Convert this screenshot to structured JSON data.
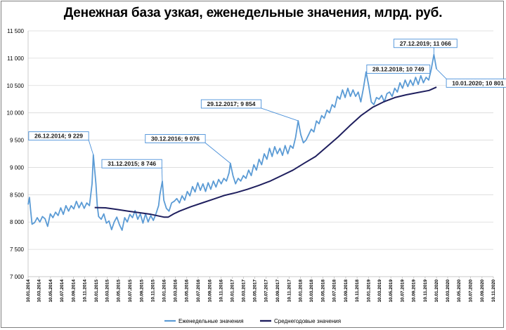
{
  "chart_data": {
    "type": "line",
    "title": "Денежная база узкая, еженедельные значения, млрд. руб.",
    "ylim": [
      7000,
      11500
    ],
    "y_ticks": [
      "7 000",
      "7 500",
      "8 000",
      "8 500",
      "9 000",
      "9 500",
      "10 000",
      "10 500",
      "11 000",
      "11 500"
    ],
    "x_range": [
      "2014-01-10",
      "2020-11-10"
    ],
    "x_ticks": [
      "10.01.2014",
      "10.03.2014",
      "10.05.2014",
      "10.07.2014",
      "10.09.2014",
      "10.11.2014",
      "10.01.2015",
      "10.03.2015",
      "10.05.2015",
      "10.07.2015",
      "10.09.2015",
      "10.11.2015",
      "10.01.2016",
      "10.03.2016",
      "10.05.2016",
      "10.07.2016",
      "10.09.2016",
      "10.11.2016",
      "10.01.2017",
      "10.03.2017",
      "10.05.2017",
      "10.07.2017",
      "10.09.2017",
      "10.11.2017",
      "10.01.2018",
      "10.03.2018",
      "10.05.2018",
      "10.07.2018",
      "10.09.2018",
      "10.11.2018",
      "10.01.2019",
      "10.03.2019",
      "10.05.2019",
      "10.07.2019",
      "10.09.2019",
      "10.11.2019",
      "10.01.2020",
      "10.03.2020",
      "10.05.2020",
      "10.07.2020",
      "10.09.2020",
      "10.11.2020"
    ],
    "series": [
      {
        "name": "Еженедельные значения",
        "color": "#5b9bd5",
        "points": [
          [
            "2014-01-10",
            8320
          ],
          [
            "2014-01-17",
            8450
          ],
          [
            "2014-01-24",
            8200
          ],
          [
            "2014-01-31",
            7960
          ],
          [
            "2014-02-14",
            7990
          ],
          [
            "2014-02-28",
            8080
          ],
          [
            "2014-03-14",
            8000
          ],
          [
            "2014-03-28",
            8100
          ],
          [
            "2014-04-11",
            8060
          ],
          [
            "2014-04-25",
            7920
          ],
          [
            "2014-05-09",
            8150
          ],
          [
            "2014-05-23",
            8080
          ],
          [
            "2014-06-06",
            8180
          ],
          [
            "2014-06-20",
            8120
          ],
          [
            "2014-07-04",
            8260
          ],
          [
            "2014-07-18",
            8140
          ],
          [
            "2014-08-01",
            8300
          ],
          [
            "2014-08-15",
            8200
          ],
          [
            "2014-08-29",
            8300
          ],
          [
            "2014-09-12",
            8240
          ],
          [
            "2014-09-26",
            8380
          ],
          [
            "2014-10-10",
            8260
          ],
          [
            "2014-10-24",
            8360
          ],
          [
            "2014-11-07",
            8250
          ],
          [
            "2014-11-21",
            8350
          ],
          [
            "2014-12-05",
            8300
          ],
          [
            "2014-12-19",
            8700
          ],
          [
            "2014-12-26",
            9229
          ],
          [
            "2015-01-09",
            8700
          ],
          [
            "2015-01-16",
            8300
          ],
          [
            "2015-01-23",
            8100
          ],
          [
            "2015-02-06",
            8050
          ],
          [
            "2015-02-20",
            8150
          ],
          [
            "2015-03-06",
            7980
          ],
          [
            "2015-03-20",
            8020
          ],
          [
            "2015-04-03",
            7860
          ],
          [
            "2015-04-17",
            8000
          ],
          [
            "2015-05-01",
            8090
          ],
          [
            "2015-05-15",
            7950
          ],
          [
            "2015-05-29",
            7850
          ],
          [
            "2015-06-12",
            8080
          ],
          [
            "2015-06-26",
            8000
          ],
          [
            "2015-07-10",
            8140
          ],
          [
            "2015-07-24",
            8080
          ],
          [
            "2015-08-07",
            8210
          ],
          [
            "2015-08-21",
            8050
          ],
          [
            "2015-09-04",
            8150
          ],
          [
            "2015-09-18",
            7980
          ],
          [
            "2015-10-02",
            8150
          ],
          [
            "2015-10-16",
            8000
          ],
          [
            "2015-10-30",
            8120
          ],
          [
            "2015-11-13",
            8030
          ],
          [
            "2015-11-27",
            8150
          ],
          [
            "2015-12-11",
            8300
          ],
          [
            "2015-12-18",
            8500
          ],
          [
            "2015-12-31",
            8746
          ],
          [
            "2016-01-08",
            8400
          ],
          [
            "2016-01-22",
            8250
          ],
          [
            "2016-02-05",
            8200
          ],
          [
            "2016-02-19",
            8350
          ],
          [
            "2016-03-04",
            8380
          ],
          [
            "2016-03-18",
            8430
          ],
          [
            "2016-04-01",
            8350
          ],
          [
            "2016-04-15",
            8480
          ],
          [
            "2016-04-29",
            8400
          ],
          [
            "2016-05-13",
            8560
          ],
          [
            "2016-05-27",
            8480
          ],
          [
            "2016-06-10",
            8650
          ],
          [
            "2016-06-24",
            8550
          ],
          [
            "2016-07-08",
            8720
          ],
          [
            "2016-07-22",
            8580
          ],
          [
            "2016-08-05",
            8700
          ],
          [
            "2016-08-19",
            8560
          ],
          [
            "2016-09-02",
            8720
          ],
          [
            "2016-09-16",
            8600
          ],
          [
            "2016-09-30",
            8750
          ],
          [
            "2016-10-14",
            8640
          ],
          [
            "2016-10-28",
            8780
          ],
          [
            "2016-11-11",
            8700
          ],
          [
            "2016-11-25",
            8800
          ],
          [
            "2016-12-09",
            8750
          ],
          [
            "2016-12-23",
            8900
          ],
          [
            "2016-12-30",
            9076
          ],
          [
            "2017-01-13",
            8850
          ],
          [
            "2017-01-27",
            8700
          ],
          [
            "2017-02-10",
            8800
          ],
          [
            "2017-02-24",
            8750
          ],
          [
            "2017-03-10",
            8850
          ],
          [
            "2017-03-24",
            8800
          ],
          [
            "2017-04-07",
            8950
          ],
          [
            "2017-04-21",
            8850
          ],
          [
            "2017-05-05",
            9050
          ],
          [
            "2017-05-19",
            8950
          ],
          [
            "2017-06-02",
            9150
          ],
          [
            "2017-06-16",
            9050
          ],
          [
            "2017-06-30",
            9250
          ],
          [
            "2017-07-14",
            9150
          ],
          [
            "2017-07-28",
            9350
          ],
          [
            "2017-08-11",
            9200
          ],
          [
            "2017-08-25",
            9380
          ],
          [
            "2017-09-08",
            9250
          ],
          [
            "2017-09-22",
            9350
          ],
          [
            "2017-10-06",
            9220
          ],
          [
            "2017-10-20",
            9400
          ],
          [
            "2017-11-03",
            9250
          ],
          [
            "2017-11-17",
            9400
          ],
          [
            "2017-12-01",
            9350
          ],
          [
            "2017-12-15",
            9550
          ],
          [
            "2017-12-29",
            9854
          ],
          [
            "2018-01-12",
            9600
          ],
          [
            "2018-01-26",
            9450
          ],
          [
            "2018-02-09",
            9500
          ],
          [
            "2018-02-23",
            9600
          ],
          [
            "2018-03-09",
            9700
          ],
          [
            "2018-03-23",
            9650
          ],
          [
            "2018-04-06",
            9850
          ],
          [
            "2018-04-20",
            9800
          ],
          [
            "2018-05-04",
            9950
          ],
          [
            "2018-05-18",
            9900
          ],
          [
            "2018-06-01",
            10050
          ],
          [
            "2018-06-15",
            10000
          ],
          [
            "2018-06-29",
            10150
          ],
          [
            "2018-07-13",
            10100
          ],
          [
            "2018-07-27",
            10300
          ],
          [
            "2018-08-10",
            10250
          ],
          [
            "2018-08-24",
            10420
          ],
          [
            "2018-09-07",
            10280
          ],
          [
            "2018-09-21",
            10450
          ],
          [
            "2018-10-05",
            10300
          ],
          [
            "2018-10-19",
            10420
          ],
          [
            "2018-11-02",
            10300
          ],
          [
            "2018-11-16",
            10380
          ],
          [
            "2018-11-30",
            10200
          ],
          [
            "2018-12-14",
            10450
          ],
          [
            "2018-12-28",
            10749
          ],
          [
            "2019-01-11",
            10500
          ],
          [
            "2019-01-25",
            10200
          ],
          [
            "2019-02-08",
            10150
          ],
          [
            "2019-02-22",
            10280
          ],
          [
            "2019-03-08",
            10250
          ],
          [
            "2019-03-22",
            10320
          ],
          [
            "2019-04-05",
            10200
          ],
          [
            "2019-04-19",
            10350
          ],
          [
            "2019-05-03",
            10380
          ],
          [
            "2019-05-17",
            10300
          ],
          [
            "2019-05-31",
            10450
          ],
          [
            "2019-06-14",
            10380
          ],
          [
            "2019-06-28",
            10550
          ],
          [
            "2019-07-12",
            10450
          ],
          [
            "2019-07-26",
            10600
          ],
          [
            "2019-08-09",
            10480
          ],
          [
            "2019-08-23",
            10600
          ],
          [
            "2019-09-06",
            10500
          ],
          [
            "2019-09-20",
            10650
          ],
          [
            "2019-10-04",
            10520
          ],
          [
            "2019-10-18",
            10680
          ],
          [
            "2019-11-01",
            10550
          ],
          [
            "2019-11-15",
            10650
          ],
          [
            "2019-11-29",
            10600
          ],
          [
            "2019-12-13",
            10800
          ],
          [
            "2019-12-27",
            11066
          ],
          [
            "2020-01-10",
            10801
          ]
        ]
      },
      {
        "name": "Среднегодовые значения",
        "color": "#1f1f5e",
        "points": [
          [
            "2015-01-02",
            8265
          ],
          [
            "2015-03-01",
            8260
          ],
          [
            "2015-05-01",
            8230
          ],
          [
            "2015-07-01",
            8200
          ],
          [
            "2015-09-01",
            8170
          ],
          [
            "2015-11-01",
            8140
          ],
          [
            "2016-01-08",
            8090
          ],
          [
            "2016-02-01",
            8090
          ],
          [
            "2016-03-01",
            8150
          ],
          [
            "2016-04-01",
            8200
          ],
          [
            "2016-06-01",
            8280
          ],
          [
            "2016-08-01",
            8350
          ],
          [
            "2016-10-01",
            8420
          ],
          [
            "2016-12-01",
            8490
          ],
          [
            "2017-02-01",
            8540
          ],
          [
            "2017-04-01",
            8600
          ],
          [
            "2017-06-01",
            8670
          ],
          [
            "2017-08-01",
            8750
          ],
          [
            "2017-10-01",
            8850
          ],
          [
            "2017-12-01",
            8950
          ],
          [
            "2018-02-01",
            9080
          ],
          [
            "2018-04-01",
            9200
          ],
          [
            "2018-06-01",
            9380
          ],
          [
            "2018-08-01",
            9560
          ],
          [
            "2018-10-01",
            9760
          ],
          [
            "2018-12-01",
            9950
          ],
          [
            "2019-02-01",
            10100
          ],
          [
            "2019-04-01",
            10200
          ],
          [
            "2019-06-01",
            10280
          ],
          [
            "2019-08-01",
            10330
          ],
          [
            "2019-10-01",
            10370
          ],
          [
            "2019-12-01",
            10410
          ],
          [
            "2020-01-10",
            10470
          ]
        ]
      }
    ],
    "annotations": [
      {
        "label": "26.12.2014; 9 229",
        "x": "2014-12-26",
        "y": 9229
      },
      {
        "label": "31.12.2015; 8 746",
        "x": "2015-12-31",
        "y": 8746
      },
      {
        "label": "30.12.2016; 9 076",
        "x": "2016-12-30",
        "y": 9076
      },
      {
        "label": "29.12.2017; 9 854",
        "x": "2017-12-29",
        "y": 9854
      },
      {
        "label": "28.12.2018; 10 749",
        "x": "2018-12-28",
        "y": 10749
      },
      {
        "label": "27.12.2019; 11 066",
        "x": "2019-12-27",
        "y": 11066
      },
      {
        "label": "10.01.2020; 10 801",
        "x": "2020-01-10",
        "y": 10801
      }
    ],
    "legend": [
      "Еженедельные значения",
      "Среднегодовые значения"
    ],
    "legend_placement": "bottom"
  }
}
